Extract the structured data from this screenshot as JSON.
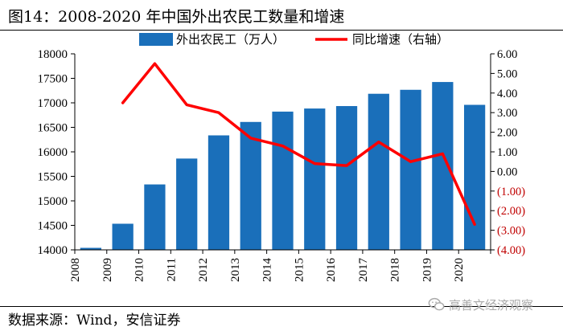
{
  "header": {
    "title": "图14：2008-2020 年中国外出农民工数量和增速"
  },
  "footer": {
    "source": "数据来源：Wind，安信证券"
  },
  "watermark": {
    "text": "高善文经济观察",
    "icon": "wechat-icon"
  },
  "colors": {
    "bar": "#1a6fba",
    "line": "#ff0000",
    "negative_tick": "#c00000"
  },
  "chart_data": {
    "type": "bar+line",
    "title": "2008-2020 年中国外出农民工数量和增速",
    "categories": [
      "2008",
      "2009",
      "2010",
      "2011",
      "2012",
      "2013",
      "2014",
      "2015",
      "2016",
      "2017",
      "2018",
      "2019",
      "2020"
    ],
    "series": [
      {
        "name": "外出农民工（万人）",
        "type": "bar",
        "axis": "left",
        "values": [
          14041,
          14533,
          15335,
          15863,
          16336,
          16610,
          16821,
          16884,
          16934,
          17185,
          17266,
          17425,
          16959
        ]
      },
      {
        "name": "同比增速（右轴）",
        "type": "line",
        "axis": "right",
        "values": [
          null,
          3.5,
          5.5,
          3.4,
          3.0,
          1.7,
          1.3,
          0.4,
          0.3,
          1.5,
          0.5,
          0.9,
          -2.7
        ]
      }
    ],
    "y_left": {
      "min": 14000,
      "max": 18000,
      "step": 500,
      "ticks": [
        "14000",
        "14500",
        "15000",
        "15500",
        "16000",
        "16500",
        "17000",
        "17500",
        "18000"
      ]
    },
    "y_right": {
      "min": -4,
      "max": 6,
      "step": 1,
      "ticks": [
        "(4.00)",
        "(3.00)",
        "(2.00)",
        "(1.00)",
        "0.00",
        "1.00",
        "2.00",
        "3.00",
        "4.00",
        "5.00",
        "6.00"
      ]
    },
    "legend": {
      "position": "top",
      "items": [
        "外出农民工（万人）",
        "同比增速（右轴）"
      ]
    }
  }
}
